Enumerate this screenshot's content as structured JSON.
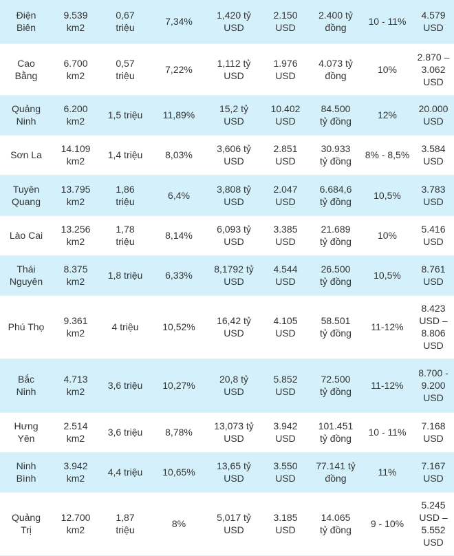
{
  "table": {
    "rows": [
      {
        "cells": [
          "Điện\nBiên",
          "9.539\nkm2",
          "0,67\ntriệu",
          "7,34%",
          "1,420 tỷ\nUSD",
          "2.150\nUSD",
          "2.400 tỷ\nđồng",
          "10 - 11%",
          "4.579\nUSD"
        ]
      },
      {
        "cells": [
          "Cao\nBằng",
          "6.700\nkm2",
          "0,57\ntriệu",
          "7,22%",
          "1,112 tỷ\nUSD",
          "1.976\nUSD",
          "4.073 tỷ\nđồng",
          "10%",
          "2.870 –\n3.062\nUSD"
        ]
      },
      {
        "cells": [
          "Quảng\nNinh",
          "6.200\nkm2",
          "1,5 triệu",
          "11,89%",
          "15,2 tỷ\nUSD",
          "10.402\nUSD",
          "84.500\ntỷ đồng",
          "12%",
          "20.000\nUSD"
        ]
      },
      {
        "cells": [
          "Sơn La",
          "14.109\nkm2",
          "1,4 triệu",
          "8,03%",
          "3,606 tỷ\nUSD",
          "2.851\nUSD",
          "30.933\ntỷ đồng",
          "8% - 8,5%",
          "3.584\nUSD"
        ]
      },
      {
        "cells": [
          "Tuyên\nQuang",
          "13.795\nkm2",
          "1,86\ntriệu",
          "6,4%",
          "3,808 tỷ\nUSD",
          "2.047\nUSD",
          "6.684,6\ntỷ đồng",
          "10,5%",
          "3.783\nUSD"
        ]
      },
      {
        "cells": [
          "Lào Cai",
          "13.256\nkm2",
          "1,78\ntriệu",
          "8,14%",
          "6,093 tỷ\nUSD",
          "3.385\nUSD",
          "21.689\ntỷ đồng",
          "10%",
          "5.416\nUSD"
        ]
      },
      {
        "cells": [
          "Thái\nNguyên",
          "8.375\nkm2",
          "1,8 triệu",
          "6,33%",
          "8,1792 tỷ\nUSD",
          "4.544\nUSD",
          "26.500\ntỷ đồng",
          "10,5%",
          "8.761\nUSD"
        ]
      },
      {
        "cells": [
          "Phú Thọ",
          "9.361\nkm2",
          "4 triệu",
          "10,52%",
          "16,42 tỷ\nUSD",
          "4.105\nUSD",
          "58.501\ntỷ đồng",
          "11-12%",
          "8.423\nUSD –\n8.806\nUSD"
        ]
      },
      {
        "cells": [
          "Bắc\nNinh",
          "4.713\nkm2",
          "3,6 triệu",
          "10,27%",
          "20,8 tỷ\nUSD",
          "5.852\nUSD",
          "72.500\ntỷ đồng",
          "11-12%",
          "8.700 -\n9.200\nUSD"
        ]
      },
      {
        "cells": [
          "Hưng\nYên",
          "2.514\nkm2",
          "3,6 triệu",
          "8,78%",
          "13,073 tỷ\nUSD",
          "3.942\nUSD",
          "101.451\ntỷ đồng",
          "10 - 11%",
          "7.168\nUSD"
        ]
      },
      {
        "cells": [
          "Ninh\nBình",
          "3.942\nkm2",
          "4,4 triệu",
          "10,65%",
          "13,65 tỷ\nUSD",
          "3.550\nUSD",
          "77.141 tỷ\nđồng",
          "11%",
          "7.167 USD"
        ]
      },
      {
        "cells": [
          "Quảng\nTrị",
          "12.700\nkm2",
          "1,87\ntriệu",
          "8%",
          "5,017 tỷ\nUSD",
          "3.185\nUSD",
          "14.065\ntỷ đồng",
          "9 - 10%",
          "5.245\nUSD –\n5.552\nUSD"
        ]
      }
    ]
  }
}
